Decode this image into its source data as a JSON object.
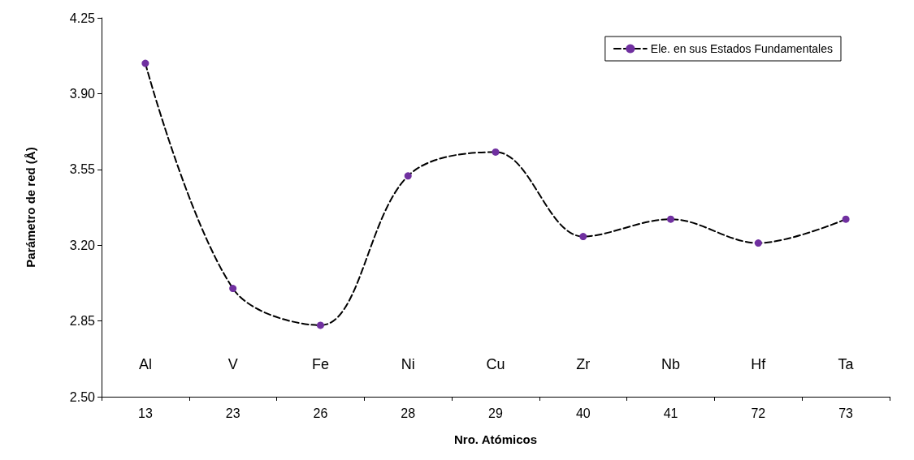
{
  "chart_data": {
    "type": "line",
    "xlabel": "Nro. Atómicos",
    "ylabel": "Parámetro de red (Å)",
    "categories": [
      "13",
      "23",
      "26",
      "28",
      "29",
      "40",
      "41",
      "72",
      "73"
    ],
    "series": [
      {
        "name": "Ele. en sus Estados Fundamentales",
        "color": "#7030a0",
        "values": [
          4.04,
          3.0,
          2.83,
          3.52,
          3.63,
          3.24,
          3.32,
          3.21,
          3.32
        ]
      }
    ],
    "ylim": [
      2.5,
      4.25
    ],
    "yticks": [
      {
        "value": 2.5,
        "label": "2.50"
      },
      {
        "value": 2.85,
        "label": "2.85"
      },
      {
        "value": 3.2,
        "label": "3.20"
      },
      {
        "value": 3.55,
        "label": "3.55"
      },
      {
        "value": 3.9,
        "label": "3.90"
      },
      {
        "value": 4.25,
        "label": "4.25"
      }
    ],
    "annotations": [
      "Al",
      "V",
      "Fe",
      "Ni",
      "Cu",
      "Zr",
      "Nb",
      "Hf",
      "Ta"
    ],
    "legend": "top right",
    "marker": "circle",
    "line_style": "dashed",
    "grid": false
  }
}
